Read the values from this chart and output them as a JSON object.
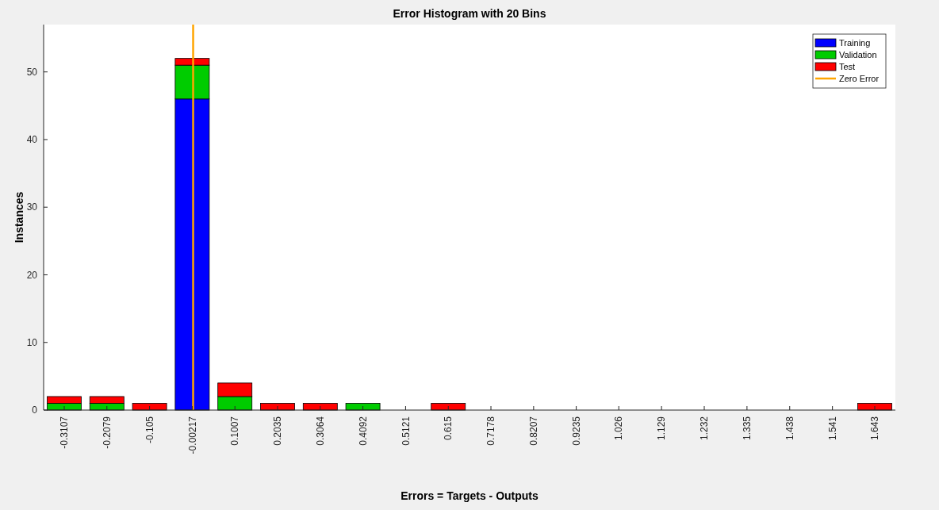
{
  "chart_data": {
    "type": "bar",
    "title": "Error Histogram with 20 Bins",
    "xlabel": "Errors = Targets - Outputs",
    "ylabel": "Instances",
    "stacked": true,
    "x": [
      -0.3107,
      -0.2079,
      -0.105,
      -0.00217,
      0.1007,
      0.2035,
      0.3064,
      0.4092,
      0.5121,
      0.615,
      0.7178,
      0.8207,
      0.9235,
      1.026,
      1.129,
      1.232,
      1.335,
      1.438,
      1.541,
      1.643
    ],
    "xlim": [
      -0.3604,
      1.6927
    ],
    "xticks": [
      -0.3107,
      -0.2079,
      -0.105,
      -0.00217,
      0.1007,
      0.2035,
      0.3064,
      0.4092,
      0.5121,
      0.615,
      0.7178,
      0.8207,
      0.9235,
      1.026,
      1.129,
      1.232,
      1.335,
      1.438,
      1.541,
      1.643
    ],
    "ylim": [
      0,
      57
    ],
    "yticks": [
      0,
      10,
      20,
      30,
      40,
      50
    ],
    "series": [
      {
        "name": "Training",
        "color": "#0000ff",
        "values": [
          0,
          0,
          0,
          46,
          0,
          0,
          0,
          0,
          0,
          0,
          0,
          0,
          0,
          0,
          0,
          0,
          0,
          0,
          0,
          0
        ]
      },
      {
        "name": "Validation",
        "color": "#00cc00",
        "values": [
          1,
          1,
          0,
          5,
          2,
          0,
          0,
          1,
          0,
          0,
          0,
          0,
          0,
          0,
          0,
          0,
          0,
          0,
          0,
          0
        ]
      },
      {
        "name": "Test",
        "color": "#ff0000",
        "values": [
          1,
          1,
          1,
          1,
          2,
          1,
          1,
          0,
          0,
          1,
          0,
          0,
          0,
          0,
          0,
          0,
          0,
          0,
          0,
          1
        ]
      },
      {
        "name": "Zero Error",
        "type": "line",
        "color": "#ffa500",
        "x": [
          0,
          0
        ],
        "values": [
          0,
          57
        ]
      }
    ],
    "legend": "top right",
    "grid": false
  }
}
